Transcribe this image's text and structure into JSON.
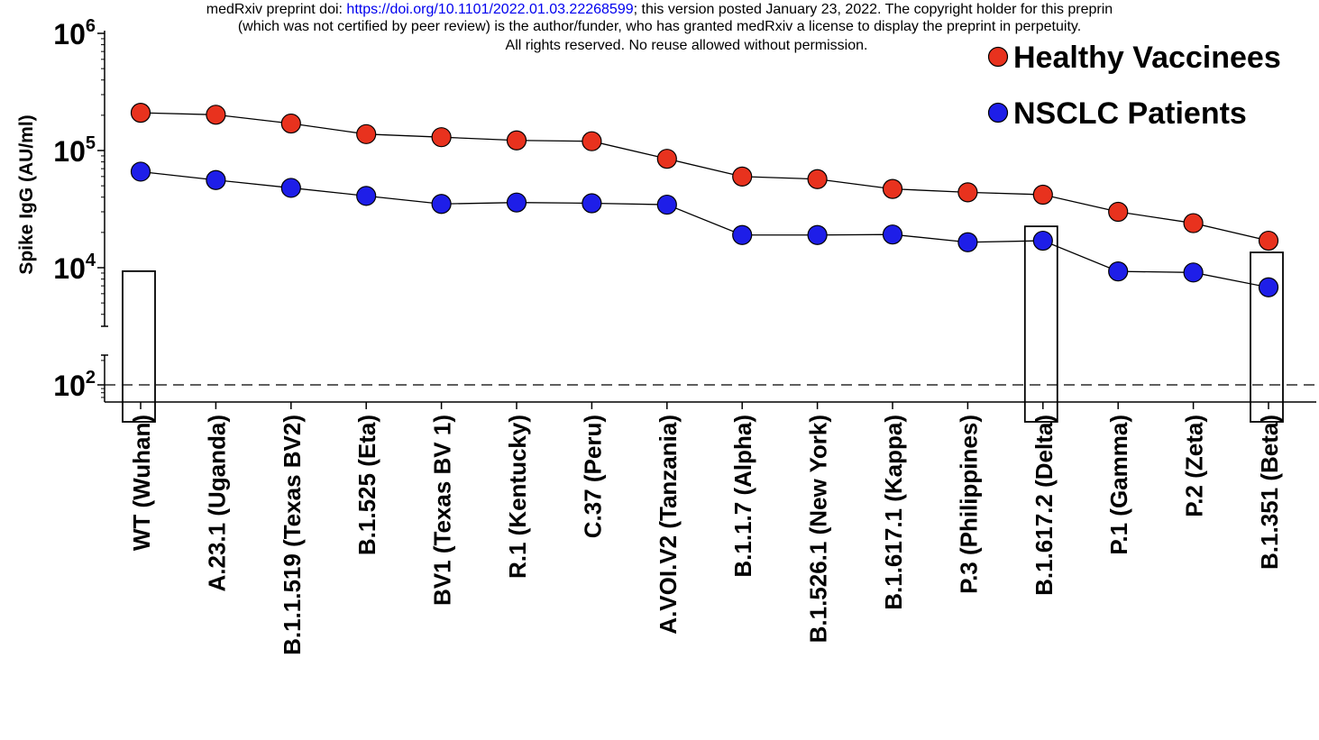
{
  "notice": {
    "prefix": "medRxiv preprint doi: ",
    "doi_link": "https://doi.org/10.1101/2022.01.03.22268599",
    "suffix": "; this version posted January 23, 2022. The copyright holder for this preprin",
    "line2": "(which was not certified by peer review) is the author/funder, who has granted medRxiv a license to display the preprint in perpetuity.",
    "line3": "All rights reserved. No reuse allowed without permission."
  },
  "chart_data": {
    "type": "line",
    "title": "",
    "xlabel": "",
    "ylabel": "Spike IgG (AU/ml)",
    "y_scale": "log",
    "y_axis_break": true,
    "ylim_upper": [
      3000,
      1000000
    ],
    "ylim_lower": [
      50,
      200
    ],
    "yticks": [
      {
        "base": "10",
        "exp": "6"
      },
      {
        "base": "10",
        "exp": "5"
      },
      {
        "base": "10",
        "exp": "4"
      },
      {
        "base": "10",
        "exp": "2"
      }
    ],
    "threshold_line": 100,
    "grid": false,
    "legend_position": "top-right",
    "categories": [
      "WT (Wuhan)",
      "A.23.1 (Uganda)",
      "B.1.1.519 (Texas BV2)",
      "B.1.525 (Eta)",
      "BV1 (Texas BV 1)",
      "R.1 (Kentucky)",
      "C.37 (Peru)",
      "A.VOI.V2 (Tanzania)",
      "B.1.1.7 (Alpha)",
      "B.1.526.1 (New York)",
      "B.1.617.1 (Kappa)",
      "P.3 (Philippines)",
      "B.1.617.2 (Delta)",
      "P.1 (Gamma)",
      "P.2 (Zeta)",
      "B.1.351 (Beta)"
    ],
    "boxed_categories": [
      "WT (Wuhan)",
      "B.1.617.2 (Delta)",
      "B.1.351 (Beta)"
    ],
    "series": [
      {
        "name": "Healthy Vaccinees",
        "color": "#e8321e",
        "values": [
          210000,
          202000,
          170000,
          138000,
          130000,
          122000,
          120000,
          85000,
          60000,
          57000,
          47000,
          44000,
          42000,
          30000,
          24000,
          17000
        ]
      },
      {
        "name": "NSCLC Patients",
        "color": "#1e1ee8",
        "values": [
          66000,
          56000,
          48000,
          41000,
          35000,
          36000,
          35500,
          34500,
          19000,
          19000,
          19200,
          16500,
          17000,
          9300,
          9100,
          6800
        ]
      }
    ]
  }
}
